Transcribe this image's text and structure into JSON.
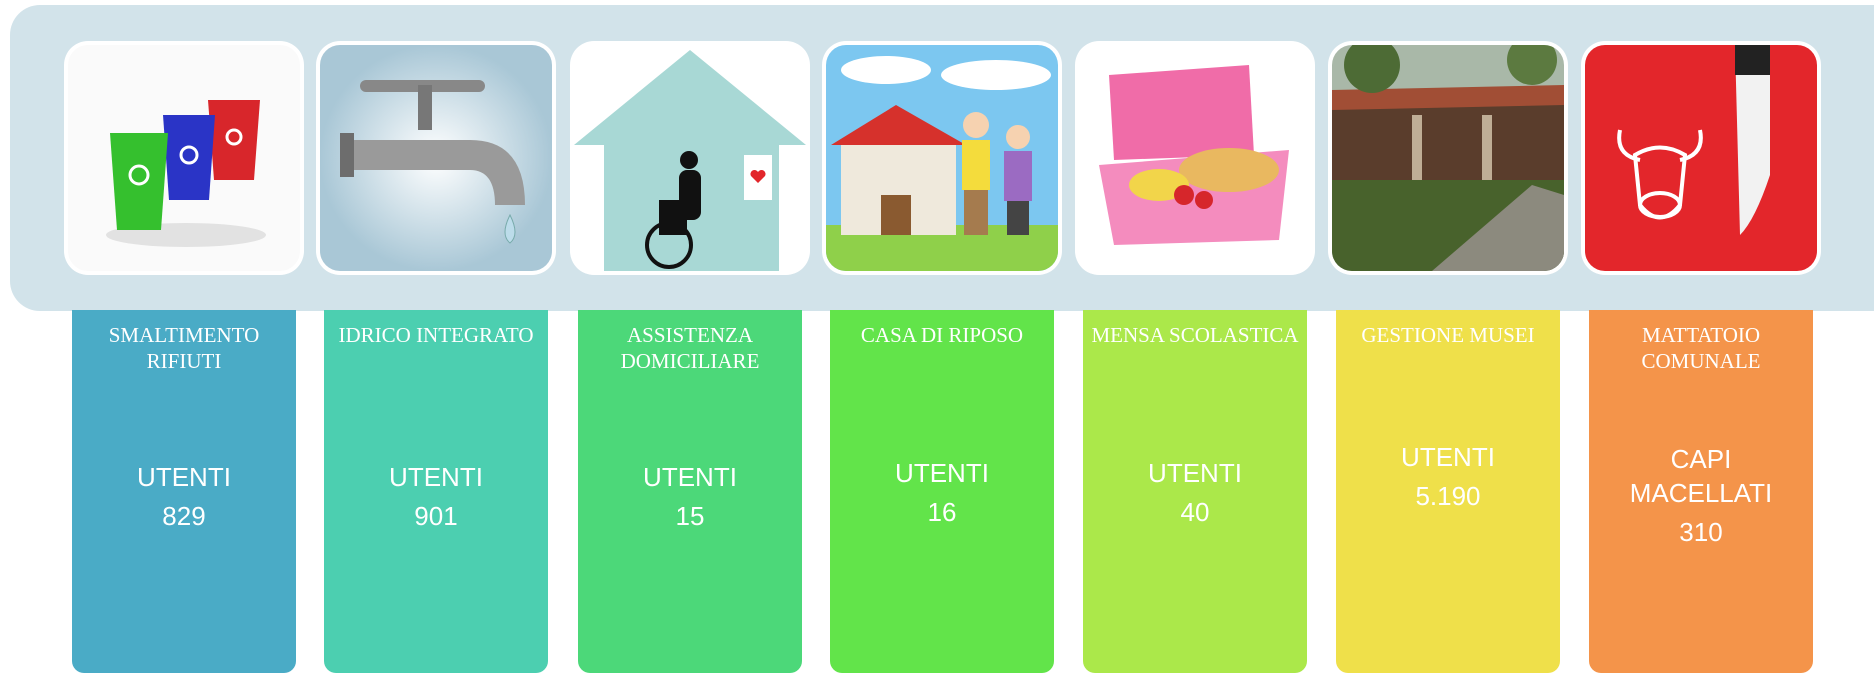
{
  "cards": [
    {
      "title": "SMALTIMENTO RIFIUTI",
      "label": "UTENTI",
      "value": 829
    },
    {
      "title": "IDRICO INTEGRATO",
      "label": "UTENTI",
      "value": 901
    },
    {
      "title": "ASSISTENZA DOMICILIARE",
      "label": "UTENTI",
      "value": 15
    },
    {
      "title": "CASA DI RIPOSO",
      "label": "UTENTI",
      "value": 16
    },
    {
      "title": "MENSA SCOLASTICA",
      "label": "UTENTI",
      "value": 40
    },
    {
      "title": "GESTIONE MUSEI",
      "label": "UTENTI",
      "value": "5.190"
    },
    {
      "title": "MATTATOIO COMUNALE",
      "label": "CAPI MACELLATI",
      "value": 310
    }
  ]
}
